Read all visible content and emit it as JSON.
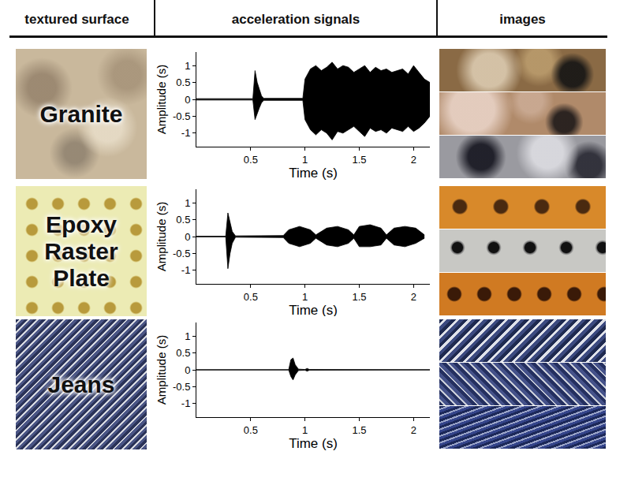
{
  "columns": [
    "textured surface",
    "acceleration signals",
    "images"
  ],
  "rows": [
    {
      "label": "Granite"
    },
    {
      "label": "Epoxy Raster Plate"
    },
    {
      "label": "Jeans"
    }
  ],
  "chart_data": [
    {
      "type": "area",
      "color": "#000000",
      "x_label": "Time (s)",
      "y_label": "Amplitude (s)",
      "xlim": [
        0,
        2.15
      ],
      "xticks": [
        0.5,
        1,
        1.5,
        2
      ],
      "ylim": [
        -1.4,
        1.4
      ],
      "yticks": [
        -1,
        -0.5,
        0,
        0.5,
        1
      ],
      "x": [
        0,
        0.52,
        0.54,
        0.56,
        0.58,
        0.6,
        0.62,
        0.98,
        1.0,
        1.05,
        1.1,
        1.15,
        1.2,
        1.25,
        1.3,
        1.35,
        1.4,
        1.45,
        1.5,
        1.55,
        1.6,
        1.65,
        1.7,
        1.75,
        1.8,
        1.85,
        1.9,
        1.95,
        2.0,
        2.05,
        2.1,
        2.15
      ],
      "upper": [
        0.02,
        0.02,
        0.85,
        0.5,
        0.3,
        0.1,
        0.03,
        0.03,
        0.6,
        0.9,
        1.0,
        0.85,
        0.95,
        1.1,
        0.9,
        1.0,
        0.95,
        0.8,
        0.9,
        1.0,
        0.8,
        0.95,
        0.85,
        0.9,
        0.8,
        0.85,
        0.9,
        0.75,
        1.0,
        0.8,
        0.6,
        0.5
      ],
      "lower": [
        -0.02,
        -0.02,
        -0.6,
        -0.4,
        -0.25,
        -0.1,
        -0.03,
        -0.03,
        -0.6,
        -0.9,
        -1.05,
        -0.9,
        -1.0,
        -1.2,
        -0.95,
        -1.0,
        -0.9,
        -0.8,
        -0.95,
        -1.1,
        -0.85,
        -0.95,
        -0.9,
        -1.0,
        -0.85,
        -0.9,
        -0.95,
        -0.8,
        -0.95,
        -0.85,
        -0.7,
        -0.5
      ]
    },
    {
      "type": "area",
      "color": "#000000",
      "x_label": "Time (s)",
      "y_label": "Amplitude (s)",
      "xlim": [
        0,
        2.15
      ],
      "xticks": [
        0.5,
        1,
        1.5,
        2
      ],
      "ylim": [
        -1.4,
        1.4
      ],
      "yticks": [
        -1,
        -0.5,
        0,
        0.5,
        1
      ],
      "x": [
        0,
        0.27,
        0.29,
        0.31,
        0.33,
        0.36,
        0.8,
        0.85,
        0.95,
        1.05,
        1.1,
        1.2,
        1.3,
        1.4,
        1.45,
        1.5,
        1.6,
        1.7,
        1.75,
        1.82,
        1.92,
        2.02,
        2.1
      ],
      "upper": [
        0.01,
        0.01,
        0.7,
        0.4,
        0.15,
        0.02,
        0.03,
        0.2,
        0.3,
        0.2,
        0.05,
        0.25,
        0.3,
        0.2,
        0.05,
        0.3,
        0.35,
        0.25,
        0.05,
        0.25,
        0.3,
        0.25,
        0.05
      ],
      "lower": [
        -0.01,
        -0.01,
        -0.95,
        -0.5,
        -0.2,
        -0.02,
        -0.03,
        -0.2,
        -0.3,
        -0.2,
        -0.05,
        -0.25,
        -0.3,
        -0.2,
        -0.05,
        -0.3,
        -0.3,
        -0.25,
        -0.05,
        -0.25,
        -0.3,
        -0.2,
        -0.05
      ]
    },
    {
      "type": "area",
      "color": "#000000",
      "x_label": "Time (s)",
      "y_label": "Amplitude (s)",
      "xlim": [
        0,
        2.15
      ],
      "xticks": [
        0.5,
        1,
        1.5,
        2
      ],
      "ylim": [
        -1.4,
        1.4
      ],
      "yticks": [
        -1,
        -0.5,
        0,
        0.5,
        1
      ],
      "x": [
        0,
        0.85,
        0.87,
        0.89,
        0.91,
        0.94,
        1.0,
        1.02,
        1.04,
        2.15
      ],
      "upper": [
        0.005,
        0.005,
        0.3,
        0.35,
        0.15,
        0.02,
        0.01,
        0.04,
        0.01,
        0.005
      ],
      "lower": [
        -0.005,
        -0.005,
        -0.2,
        -0.3,
        -0.15,
        -0.02,
        -0.01,
        -0.04,
        -0.01,
        -0.005
      ]
    }
  ]
}
